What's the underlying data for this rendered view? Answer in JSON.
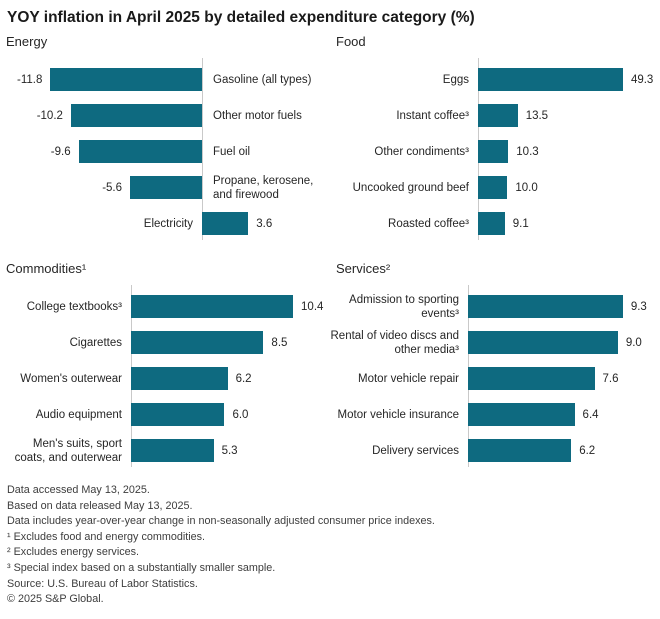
{
  "title": "YOY inflation in April 2025 by detailed expenditure category (%)",
  "colors": {
    "bar": "#0E6A80",
    "axis": "#c9c9c9"
  },
  "chart_data": [
    {
      "type": "bar",
      "orientation": "horizontal",
      "panel": "Energy",
      "categories": [
        "Gasoline (all types)",
        "Other motor fuels",
        "Fuel oil",
        "Propane, kerosene, and firewood",
        "Electricity"
      ],
      "values": [
        -11.8,
        -10.2,
        -9.6,
        -5.6,
        3.6
      ],
      "xlim": [
        -15.7,
        9.9
      ],
      "grid": false,
      "value_labels": true
    },
    {
      "type": "bar",
      "orientation": "horizontal",
      "panel": "Food",
      "categories": [
        "Eggs",
        "Instant coffee³",
        "Other condiments³",
        "Uncooked ground beef",
        "Roasted coffee³"
      ],
      "values": [
        49.3,
        13.5,
        10.3,
        10.0,
        9.1
      ],
      "xlim": [
        0,
        62
      ],
      "grid": false,
      "value_labels": true
    },
    {
      "type": "bar",
      "orientation": "horizontal",
      "panel": "Commodities¹",
      "categories": [
        "College textbooks³",
        "Cigarettes",
        "Women's outerwear",
        "Audio equipment",
        "Men's suits, sport coats, and outerwear"
      ],
      "values": [
        10.4,
        8.5,
        6.2,
        6.0,
        5.3
      ],
      "xlim": [
        0,
        12.8
      ],
      "grid": false,
      "value_labels": true
    },
    {
      "type": "bar",
      "orientation": "horizontal",
      "panel": "Services²",
      "categories": [
        "Admission to sporting events³",
        "Rental of video discs and other media³",
        "Motor vehicle repair",
        "Motor vehicle insurance",
        "Delivery services"
      ],
      "values": [
        9.3,
        9.0,
        7.6,
        6.4,
        6.2
      ],
      "xlim": [
        0,
        11.5
      ],
      "grid": false,
      "value_labels": true
    }
  ],
  "footnotes": [
    "Data accessed May 13, 2025.",
    "Based on data released May 13, 2025.",
    "Data includes year-over-year change in non-seasonally adjusted consumer price indexes.",
    "¹ Excludes food and energy commodities.",
    "² Excludes energy services.",
    "³ Special index based on a substantially smaller sample.",
    "Source: U.S. Bureau of Labor Statistics.",
    "© 2025 S&P Global."
  ]
}
